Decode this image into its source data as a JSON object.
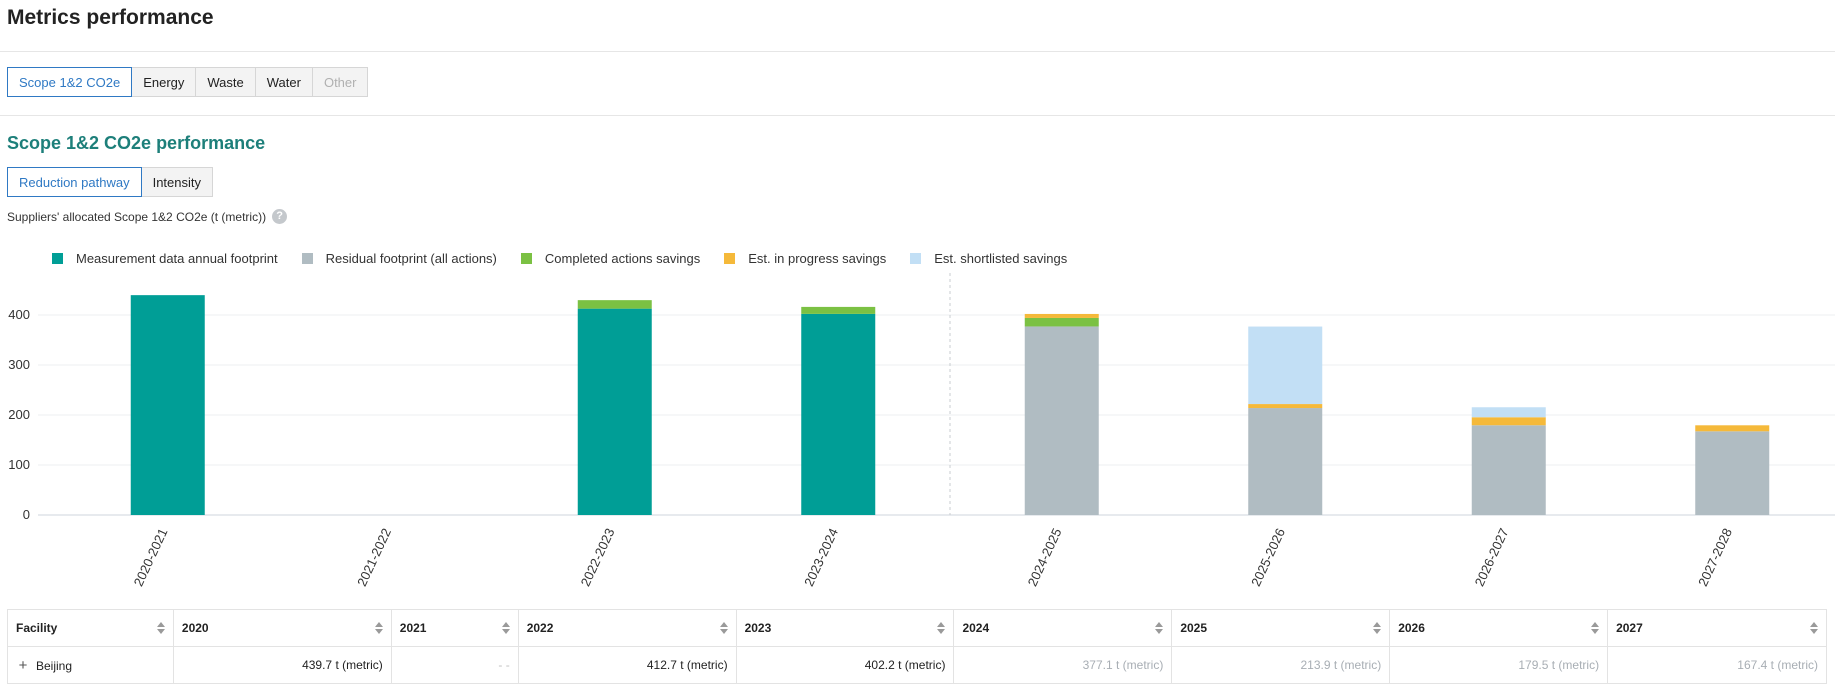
{
  "page_title": "Metrics performance",
  "metric_tabs": [
    {
      "label": "Scope 1&2 CO2e",
      "active": true,
      "disabled": false
    },
    {
      "label": "Energy",
      "active": false,
      "disabled": false
    },
    {
      "label": "Waste",
      "active": false,
      "disabled": false
    },
    {
      "label": "Water",
      "active": false,
      "disabled": false
    },
    {
      "label": "Other",
      "active": false,
      "disabled": true
    }
  ],
  "section_title": "Scope 1&2 CO2e performance",
  "view_tabs": [
    {
      "label": "Reduction pathway",
      "active": true
    },
    {
      "label": "Intensity",
      "active": false
    }
  ],
  "subtitle": "Suppliers' allocated Scope 1&2 CO2e (t (metric))",
  "help_icon_text": "?",
  "colors": {
    "measurement": "#009e96",
    "residual": "#b0bcc2",
    "completed": "#7bc143",
    "in_progress": "#f5b93a",
    "shortlisted": "#c2dff5",
    "accent": "#2f79c4",
    "section": "#1d7f7a"
  },
  "chart_data": {
    "type": "bar",
    "stacked": true,
    "categories": [
      "2020-2021",
      "2021-2022",
      "2022-2023",
      "2023-2024",
      "2024-2025",
      "2025-2026",
      "2026-2027",
      "2027-2028"
    ],
    "series": [
      {
        "name": "Measurement data annual footprint",
        "color": "#009e96",
        "values": [
          439.7,
          0,
          412.7,
          402.2,
          0,
          0,
          0,
          0
        ]
      },
      {
        "name": "Residual footprint (all actions)",
        "color": "#b0bcc2",
        "values": [
          0,
          0,
          0,
          0,
          377.1,
          213.9,
          179.5,
          167.4
        ]
      },
      {
        "name": "Completed actions savings",
        "color": "#7bc143",
        "values": [
          0,
          0,
          17,
          14,
          17,
          0,
          0,
          0
        ]
      },
      {
        "name": "Est. in progress savings",
        "color": "#f5b93a",
        "values": [
          0,
          0,
          0,
          0,
          8,
          8,
          16,
          12
        ]
      },
      {
        "name": "Est. shortlisted savings",
        "color": "#c2dff5",
        "values": [
          0,
          0,
          0,
          0,
          0,
          155,
          20,
          0
        ]
      }
    ],
    "y_ticks": [
      0,
      100,
      200,
      300,
      400
    ],
    "ylim": [
      0,
      480
    ],
    "forecast_divider_after": "2023-2024",
    "grid": true,
    "legend_position": "top-left"
  },
  "table": {
    "columns": [
      "Facility",
      "2020",
      "2021",
      "2022",
      "2023",
      "2024",
      "2025",
      "2026",
      "2027"
    ],
    "rows": [
      {
        "facility": "Beijing",
        "expand_icon": "+",
        "cells": [
          {
            "value": "439.7 t (metric)",
            "style": "actual"
          },
          {
            "value": "- -",
            "style": "empty"
          },
          {
            "value": "412.7 t (metric)",
            "style": "actual"
          },
          {
            "value": "402.2 t (metric)",
            "style": "actual"
          },
          {
            "value": "377.1 t (metric)",
            "style": "projected"
          },
          {
            "value": "213.9 t (metric)",
            "style": "projected"
          },
          {
            "value": "179.5 t (metric)",
            "style": "projected"
          },
          {
            "value": "167.4 t (metric)",
            "style": "projected"
          }
        ]
      }
    ]
  }
}
